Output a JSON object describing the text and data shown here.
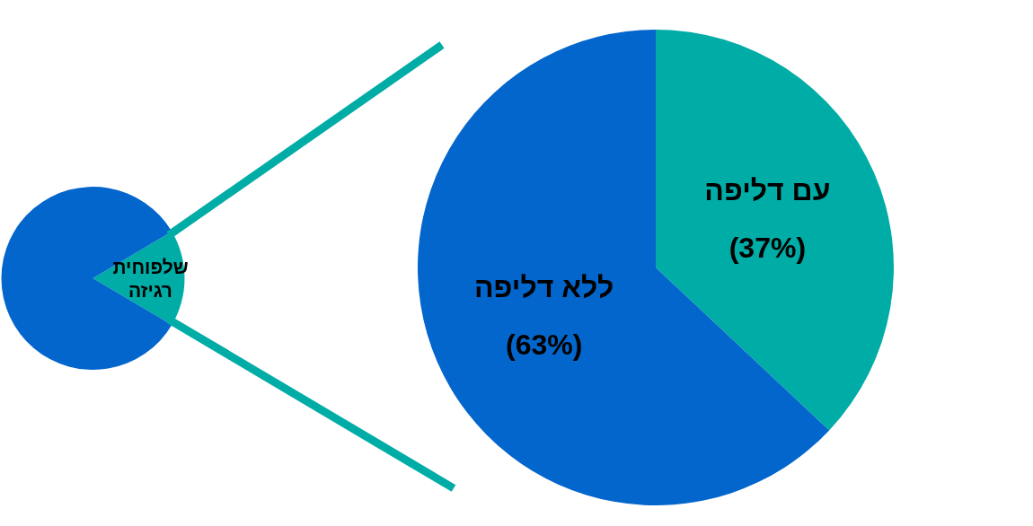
{
  "chart_data": [
    {
      "type": "pie",
      "categories": [
        "שלפוחית רגיזה",
        null
      ],
      "values": [
        17,
        83
      ],
      "colors": [
        "#00aca6",
        "#0366cc"
      ]
    },
    {
      "type": "pie",
      "categories": [
        "עם דליפה",
        "ללא דליפה"
      ],
      "values": [
        37,
        63
      ],
      "colors": [
        "#00aca6",
        "#0366cc"
      ],
      "value_labels": [
        "(37%)",
        "(63%)"
      ]
    }
  ]
}
